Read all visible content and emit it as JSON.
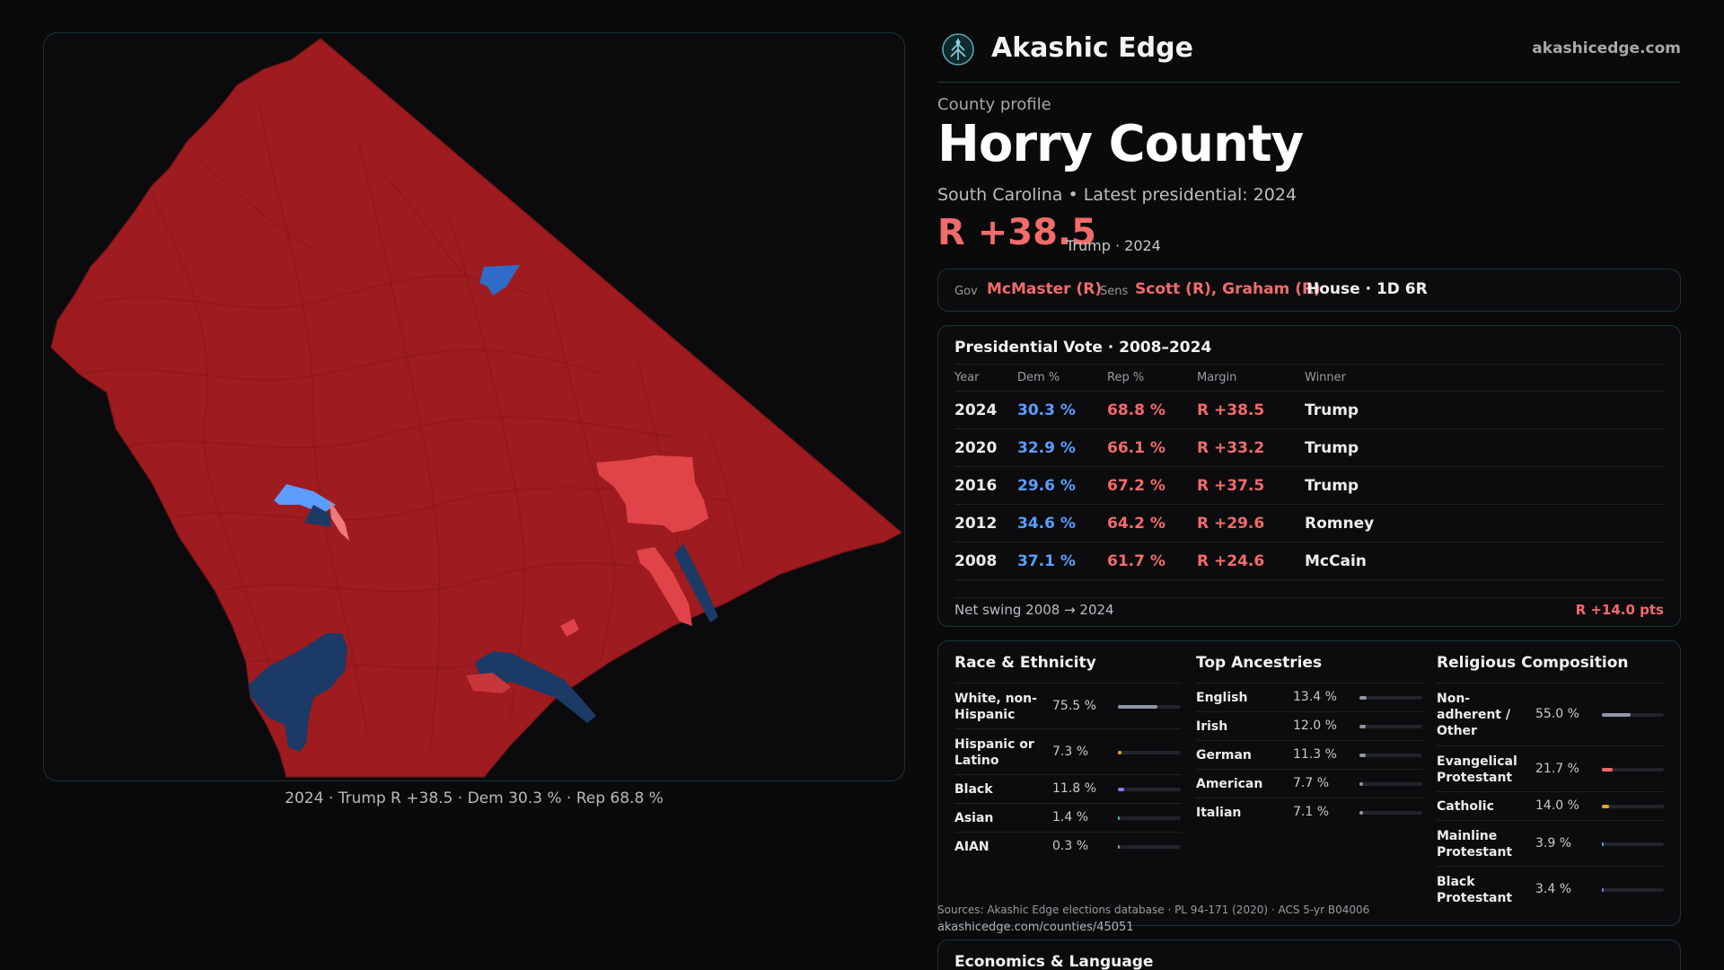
{
  "map": {
    "caption": "2024 · Trump R +38.5 · Dem 30.3 % · Rep 68.8 %",
    "colors": {
      "strong_rep": "#9e1b1f",
      "lean_rep": "#e04448",
      "strong_dem": "#1c3a66",
      "lean_dem": "#2e6cc8",
      "light_dem": "#5c9dff"
    }
  },
  "brand": {
    "name": "Akashic Edge",
    "url": "akashicedge.com",
    "logo_icon": "tree-of-life-icon"
  },
  "profile": {
    "eyebrow": "County profile",
    "county": "Horry County",
    "subline": "South Carolina • Latest presidential: 2024",
    "margin": "R +38.5",
    "margin_note": "Trump · 2024"
  },
  "officials": {
    "gov_label": "Gov",
    "gov": "McMaster (R)",
    "sens_label": "Sens",
    "sens": "Scott (R), Graham (R)",
    "house": "House · 1D 6R"
  },
  "presidential": {
    "title": "Presidential Vote · 2008–2024",
    "headers": [
      "Year",
      "Dem %",
      "Rep %",
      "Margin",
      "Winner"
    ],
    "rows": [
      {
        "year": "2024",
        "dem": "30.3 %",
        "rep": "68.8 %",
        "margin": "R +38.5",
        "winner": "Trump"
      },
      {
        "year": "2020",
        "dem": "32.9 %",
        "rep": "66.1 %",
        "margin": "R +33.2",
        "winner": "Trump"
      },
      {
        "year": "2016",
        "dem": "29.6 %",
        "rep": "67.2 %",
        "margin": "R +37.5",
        "winner": "Trump"
      },
      {
        "year": "2012",
        "dem": "34.6 %",
        "rep": "64.2 %",
        "margin": "R +29.6",
        "winner": "Romney"
      },
      {
        "year": "2008",
        "dem": "37.1 %",
        "rep": "61.7 %",
        "margin": "R +24.6",
        "winner": "McCain"
      }
    ],
    "swing_label": "Net swing 2008 → 2024",
    "swing_value": "R +14.0 pts"
  },
  "race": {
    "title": "Race & Ethnicity",
    "items": [
      {
        "label": "White, non-Hispanic",
        "pct": "75.5 %",
        "value": 75.5,
        "color": "#8f97a6"
      },
      {
        "label": "Hispanic or Latino",
        "pct": "7.3 %",
        "value": 7.3,
        "color": "#e0a92c"
      },
      {
        "label": "Black",
        "pct": "11.8 %",
        "value": 11.8,
        "color": "#8a7ce6"
      },
      {
        "label": "Asian",
        "pct": "1.4 %",
        "value": 1.4,
        "color": "#3fb8a5"
      },
      {
        "label": "AIAN",
        "pct": "0.3 %",
        "value": 0.3,
        "color": "#9a9a9e"
      }
    ]
  },
  "ancestry": {
    "title": "Top Ancestries",
    "items": [
      {
        "label": "English",
        "pct": "13.4 %",
        "value": 13.4,
        "color": "#8f97a6"
      },
      {
        "label": "Irish",
        "pct": "12.0 %",
        "value": 12.0,
        "color": "#8f97a6"
      },
      {
        "label": "German",
        "pct": "11.3 %",
        "value": 11.3,
        "color": "#8f97a6"
      },
      {
        "label": "American",
        "pct": "7.7 %",
        "value": 7.7,
        "color": "#8f97a6"
      },
      {
        "label": "Italian",
        "pct": "7.1 %",
        "value": 7.1,
        "color": "#8f97a6"
      }
    ]
  },
  "religion": {
    "title": "Religious Composition",
    "items": [
      {
        "label": "Non-adherent / Other",
        "pct": "55.0 %",
        "value": 55.0,
        "color": "#8f97a6"
      },
      {
        "label": "Evangelical Protestant",
        "pct": "21.7 %",
        "value": 21.7,
        "color": "#f26b6b"
      },
      {
        "label": "Catholic",
        "pct": "14.0 %",
        "value": 14.0,
        "color": "#e0a92c"
      },
      {
        "label": "Mainline Protestant",
        "pct": "3.9 %",
        "value": 3.9,
        "color": "#5c9dff"
      },
      {
        "label": "Black Protestant",
        "pct": "3.4 %",
        "value": 3.4,
        "color": "#8a7ce6"
      }
    ]
  },
  "sources": {
    "text": "Sources: Akashic Edge elections database · PL 94-171 (2020) · ACS 5-yr B04006",
    "url": "akashicedge.com/counties/45051"
  },
  "economics": {
    "title": "Economics & Language"
  }
}
